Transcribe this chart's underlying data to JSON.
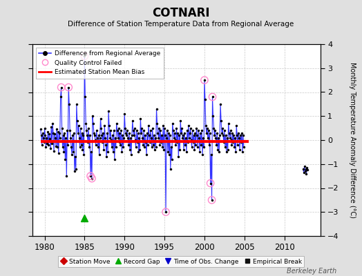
{
  "title": "COTNARI",
  "subtitle": "Difference of Station Temperature Data from Regional Average",
  "ylabel": "Monthly Temperature Anomaly Difference (°C)",
  "xlabel_ticks": [
    1980,
    1985,
    1990,
    1995,
    2000,
    2005,
    2010
  ],
  "ylim": [
    -4,
    4
  ],
  "xlim": [
    1978.5,
    2014.5
  ],
  "bias_line_y": -0.05,
  "bias_line_x_start": 1979.5,
  "bias_line_x_end": 2005.5,
  "record_gap_x": 1985.0,
  "record_gap_y": -3.25,
  "background_color": "#e0e0e0",
  "plot_bg_color": "#ffffff",
  "grid_color": "#c8c8c8",
  "bias_color": "#ff0000",
  "line_color": "#3333ff",
  "dot_color": "#000000",
  "qc_color": "#ff88cc",
  "watermark": "Berkeley Earth",
  "segment1": [
    [
      1979.5,
      0.45
    ],
    [
      1979.583,
      0.2
    ],
    [
      1979.667,
      -0.2
    ],
    [
      1979.75,
      0.3
    ],
    [
      1979.833,
      0.1
    ],
    [
      1979.917,
      -0.1
    ],
    [
      1980.0,
      0.5
    ],
    [
      1980.083,
      0.2
    ],
    [
      1980.167,
      -0.3
    ],
    [
      1980.25,
      0.1
    ],
    [
      1980.333,
      -0.15
    ],
    [
      1980.417,
      0.35
    ],
    [
      1980.5,
      -0.2
    ],
    [
      1980.583,
      0.25
    ],
    [
      1980.667,
      0.05
    ],
    [
      1980.75,
      -0.35
    ],
    [
      1980.833,
      0.55
    ],
    [
      1980.917,
      -0.15
    ],
    [
      1981.0,
      0.7
    ],
    [
      1981.083,
      0.3
    ],
    [
      1981.167,
      -0.45
    ],
    [
      1981.25,
      0.25
    ],
    [
      1981.333,
      0.1
    ],
    [
      1981.417,
      -0.25
    ],
    [
      1981.5,
      0.45
    ],
    [
      1981.583,
      -0.3
    ],
    [
      1981.667,
      0.35
    ],
    [
      1981.75,
      -0.55
    ],
    [
      1981.833,
      0.3
    ],
    [
      1981.917,
      0.1
    ],
    [
      1982.0,
      1.8
    ],
    [
      1982.083,
      2.2
    ],
    [
      1982.167,
      0.5
    ],
    [
      1982.25,
      -0.3
    ],
    [
      1982.333,
      0.2
    ],
    [
      1982.417,
      -0.5
    ],
    [
      1982.5,
      0.3
    ],
    [
      1982.583,
      -0.8
    ],
    [
      1982.667,
      0.1
    ],
    [
      1982.75,
      -1.5
    ],
    [
      1982.833,
      0.4
    ],
    [
      1982.917,
      -0.2
    ],
    [
      1983.0,
      2.2
    ],
    [
      1983.083,
      1.5
    ],
    [
      1983.167,
      0.4
    ],
    [
      1983.25,
      0.1
    ],
    [
      1983.333,
      -0.3
    ],
    [
      1983.417,
      -0.6
    ],
    [
      1983.5,
      0.2
    ],
    [
      1983.583,
      -0.5
    ],
    [
      1983.667,
      0.3
    ],
    [
      1983.75,
      -1.3
    ],
    [
      1983.833,
      -0.7
    ],
    [
      1983.917,
      -1.2
    ],
    [
      1984.0,
      1.5
    ],
    [
      1984.083,
      0.8
    ],
    [
      1984.167,
      0.3
    ],
    [
      1984.25,
      0.6
    ],
    [
      1984.333,
      0.1
    ],
    [
      1984.417,
      -0.3
    ],
    [
      1984.5,
      0.5
    ],
    [
      1984.583,
      -0.2
    ],
    [
      1984.667,
      0.3
    ],
    [
      1984.75,
      -0.4
    ],
    [
      1984.833,
      0.2
    ],
    [
      1984.917,
      -0.6
    ],
    [
      1985.0,
      3.5
    ],
    [
      1985.083,
      1.8
    ],
    [
      1985.167,
      0.7
    ],
    [
      1985.25,
      0.4
    ],
    [
      1985.333,
      0.2
    ],
    [
      1985.417,
      -0.1
    ],
    [
      1985.5,
      0.5
    ],
    [
      1985.583,
      -0.3
    ],
    [
      1985.667,
      0.2
    ],
    [
      1985.75,
      -1.5
    ],
    [
      1985.833,
      -0.5
    ],
    [
      1985.917,
      -1.6
    ],
    [
      1986.0,
      1.0
    ],
    [
      1986.083,
      0.7
    ],
    [
      1986.167,
      0.3
    ],
    [
      1986.25,
      0.2
    ],
    [
      1986.333,
      0.0
    ],
    [
      1986.417,
      -0.2
    ],
    [
      1986.5,
      0.4
    ],
    [
      1986.583,
      0.1
    ],
    [
      1986.667,
      -0.3
    ],
    [
      1986.75,
      0.2
    ],
    [
      1986.833,
      -0.6
    ],
    [
      1986.917,
      0.1
    ],
    [
      1987.0,
      0.9
    ],
    [
      1987.083,
      0.5
    ],
    [
      1987.167,
      0.2
    ],
    [
      1987.25,
      -0.1
    ],
    [
      1987.333,
      0.3
    ],
    [
      1987.417,
      -0.4
    ],
    [
      1987.5,
      0.6
    ],
    [
      1987.583,
      0.1
    ],
    [
      1987.667,
      -0.2
    ],
    [
      1987.75,
      -0.7
    ],
    [
      1987.833,
      0.3
    ],
    [
      1987.917,
      -0.5
    ],
    [
      1988.0,
      1.2
    ],
    [
      1988.083,
      0.6
    ],
    [
      1988.167,
      0.1
    ],
    [
      1988.25,
      0.4
    ],
    [
      1988.333,
      0.0
    ],
    [
      1988.417,
      -0.3
    ],
    [
      1988.5,
      0.2
    ],
    [
      1988.583,
      -0.5
    ],
    [
      1988.667,
      0.4
    ],
    [
      1988.75,
      -0.8
    ],
    [
      1988.833,
      0.1
    ],
    [
      1988.917,
      -0.3
    ],
    [
      1989.0,
      0.7
    ],
    [
      1989.083,
      0.4
    ],
    [
      1989.167,
      0.1
    ],
    [
      1989.25,
      0.5
    ],
    [
      1989.333,
      -0.1
    ],
    [
      1989.417,
      0.3
    ],
    [
      1989.5,
      -0.2
    ],
    [
      1989.583,
      0.4
    ],
    [
      1989.667,
      -0.5
    ],
    [
      1989.75,
      0.2
    ],
    [
      1989.833,
      -0.3
    ],
    [
      1989.917,
      0.1
    ],
    [
      1990.0,
      1.1
    ],
    [
      1990.083,
      0.5
    ],
    [
      1990.167,
      0.3
    ],
    [
      1990.25,
      0.2
    ],
    [
      1990.333,
      0.4
    ],
    [
      1990.417,
      0.1
    ],
    [
      1990.5,
      -0.2
    ],
    [
      1990.583,
      0.3
    ],
    [
      1990.667,
      -0.4
    ],
    [
      1990.75,
      0.1
    ],
    [
      1990.833,
      -0.6
    ],
    [
      1990.917,
      0.2
    ],
    [
      1991.0,
      0.8
    ],
    [
      1991.083,
      0.4
    ],
    [
      1991.167,
      0.2
    ],
    [
      1991.25,
      0.5
    ],
    [
      1991.333,
      0.0
    ],
    [
      1991.417,
      -0.3
    ],
    [
      1991.5,
      0.4
    ],
    [
      1991.583,
      -0.1
    ],
    [
      1991.667,
      0.3
    ],
    [
      1991.75,
      -0.5
    ],
    [
      1991.833,
      0.1
    ],
    [
      1991.917,
      -0.4
    ],
    [
      1992.0,
      0.9
    ],
    [
      1992.083,
      0.3
    ],
    [
      1992.167,
      0.5
    ],
    [
      1992.25,
      0.1
    ],
    [
      1992.333,
      -0.2
    ],
    [
      1992.417,
      0.4
    ],
    [
      1992.5,
      -0.3
    ],
    [
      1992.583,
      0.2
    ],
    [
      1992.667,
      -0.1
    ],
    [
      1992.75,
      -0.6
    ],
    [
      1992.833,
      0.3
    ],
    [
      1992.917,
      -0.2
    ],
    [
      1993.0,
      0.6
    ],
    [
      1993.083,
      0.2
    ],
    [
      1993.167,
      -0.1
    ],
    [
      1993.25,
      0.4
    ],
    [
      1993.333,
      0.1
    ],
    [
      1993.417,
      -0.3
    ],
    [
      1993.5,
      0.5
    ],
    [
      1993.583,
      -0.2
    ],
    [
      1993.667,
      0.2
    ],
    [
      1993.75,
      -0.4
    ],
    [
      1993.833,
      0.1
    ],
    [
      1993.917,
      -0.3
    ],
    [
      1994.0,
      1.3
    ],
    [
      1994.083,
      0.7
    ],
    [
      1994.167,
      0.3
    ],
    [
      1994.25,
      0.1
    ],
    [
      1994.333,
      0.5
    ],
    [
      1994.417,
      -0.2
    ],
    [
      1994.5,
      0.4
    ],
    [
      1994.583,
      -0.1
    ],
    [
      1994.667,
      0.2
    ],
    [
      1994.75,
      -0.3
    ],
    [
      1994.833,
      0.6
    ],
    [
      1994.917,
      -0.4
    ],
    [
      1995.0,
      0.5
    ],
    [
      1995.083,
      0.2
    ],
    [
      1995.167,
      -3.0
    ],
    [
      1995.25,
      0.1
    ],
    [
      1995.333,
      0.4
    ],
    [
      1995.417,
      -0.5
    ],
    [
      1995.5,
      0.3
    ],
    [
      1995.583,
      -0.6
    ],
    [
      1995.667,
      0.2
    ],
    [
      1995.75,
      -1.2
    ],
    [
      1995.833,
      -0.3
    ],
    [
      1995.917,
      -0.8
    ],
    [
      1996.0,
      0.7
    ],
    [
      1996.083,
      0.4
    ],
    [
      1996.167,
      0.1
    ],
    [
      1996.25,
      0.3
    ],
    [
      1996.333,
      0.0
    ],
    [
      1996.417,
      -0.2
    ],
    [
      1996.5,
      0.5
    ],
    [
      1996.583,
      -0.1
    ],
    [
      1996.667,
      0.3
    ],
    [
      1996.75,
      -0.7
    ],
    [
      1996.833,
      0.2
    ],
    [
      1996.917,
      -0.4
    ],
    [
      1997.0,
      0.8
    ],
    [
      1997.083,
      0.3
    ],
    [
      1997.167,
      0.5
    ],
    [
      1997.25,
      0.1
    ],
    [
      1997.333,
      0.2
    ],
    [
      1997.417,
      -0.4
    ],
    [
      1997.5,
      0.3
    ],
    [
      1997.583,
      -0.2
    ],
    [
      1997.667,
      0.1
    ],
    [
      1997.75,
      -0.5
    ],
    [
      1997.833,
      0.4
    ],
    [
      1997.917,
      -0.1
    ],
    [
      1998.0,
      0.6
    ],
    [
      1998.083,
      0.1
    ],
    [
      1998.167,
      0.3
    ],
    [
      1998.25,
      0.5
    ],
    [
      1998.333,
      0.0
    ],
    [
      1998.417,
      -0.3
    ],
    [
      1998.5,
      0.4
    ],
    [
      1998.583,
      -0.1
    ],
    [
      1998.667,
      0.2
    ],
    [
      1998.75,
      -0.4
    ],
    [
      1998.833,
      0.3
    ],
    [
      1998.917,
      -0.2
    ],
    [
      1999.0,
      0.5
    ],
    [
      1999.083,
      0.2
    ],
    [
      1999.167,
      -0.3
    ],
    [
      1999.25,
      0.4
    ],
    [
      1999.333,
      0.1
    ],
    [
      1999.417,
      -0.5
    ],
    [
      1999.5,
      0.3
    ],
    [
      1999.583,
      -0.2
    ],
    [
      1999.667,
      0.4
    ],
    [
      1999.75,
      -0.6
    ],
    [
      1999.833,
      0.1
    ],
    [
      1999.917,
      -0.3
    ],
    [
      2000.0,
      2.5
    ],
    [
      2000.083,
      1.7
    ],
    [
      2000.167,
      0.6
    ],
    [
      2000.25,
      0.3
    ],
    [
      2000.333,
      0.5
    ],
    [
      2000.417,
      0.1
    ],
    [
      2000.5,
      0.4
    ],
    [
      2000.583,
      -0.2
    ],
    [
      2000.667,
      0.3
    ],
    [
      2000.75,
      -1.8
    ],
    [
      2000.833,
      -0.6
    ],
    [
      2000.917,
      -2.5
    ],
    [
      2001.0,
      1.8
    ],
    [
      2001.083,
      1.0
    ],
    [
      2001.167,
      0.5
    ],
    [
      2001.25,
      0.2
    ],
    [
      2001.333,
      0.4
    ],
    [
      2001.417,
      0.1
    ],
    [
      2001.5,
      -0.2
    ],
    [
      2001.583,
      0.3
    ],
    [
      2001.667,
      -0.4
    ],
    [
      2001.75,
      0.1
    ],
    [
      2001.833,
      -0.5
    ],
    [
      2001.917,
      0.2
    ],
    [
      2002.0,
      1.5
    ],
    [
      2002.083,
      0.8
    ],
    [
      2002.167,
      0.3
    ],
    [
      2002.25,
      0.5
    ],
    [
      2002.333,
      0.2
    ],
    [
      2002.417,
      -0.1
    ],
    [
      2002.5,
      0.4
    ],
    [
      2002.583,
      -0.3
    ],
    [
      2002.667,
      0.2
    ],
    [
      2002.75,
      -0.5
    ],
    [
      2002.833,
      0.1
    ],
    [
      2002.917,
      -0.4
    ],
    [
      2003.0,
      0.7
    ],
    [
      2003.083,
      0.3
    ],
    [
      2003.167,
      0.1
    ],
    [
      2003.25,
      0.4
    ],
    [
      2003.333,
      0.0
    ],
    [
      2003.417,
      -0.2
    ],
    [
      2003.5,
      0.3
    ],
    [
      2003.583,
      -0.1
    ],
    [
      2003.667,
      0.2
    ],
    [
      2003.75,
      -0.3
    ],
    [
      2003.833,
      0.1
    ],
    [
      2003.917,
      -0.5
    ],
    [
      2004.0,
      0.6
    ],
    [
      2004.083,
      0.2
    ],
    [
      2004.167,
      -0.2
    ],
    [
      2004.25,
      0.3
    ],
    [
      2004.333,
      0.1
    ],
    [
      2004.417,
      -0.4
    ],
    [
      2004.5,
      0.2
    ],
    [
      2004.583,
      -0.1
    ],
    [
      2004.667,
      0.3
    ],
    [
      2004.75,
      -0.5
    ],
    [
      2004.833,
      0.2
    ],
    [
      2004.917,
      -0.3
    ]
  ],
  "segment2": [
    [
      2012.333,
      -1.2
    ],
    [
      2012.417,
      -1.35
    ],
    [
      2012.5,
      -1.1
    ],
    [
      2012.583,
      -1.3
    ],
    [
      2012.667,
      -1.2
    ],
    [
      2012.75,
      -1.4
    ],
    [
      2012.833,
      -1.15
    ],
    [
      2012.917,
      -1.25
    ]
  ],
  "qc_failed_points": [
    [
      1982.083,
      2.2
    ],
    [
      1983.0,
      2.2
    ],
    [
      1985.0,
      3.5
    ],
    [
      1985.75,
      -1.5
    ],
    [
      1985.917,
      -1.6
    ],
    [
      1995.167,
      -3.0
    ],
    [
      2000.0,
      2.5
    ],
    [
      2000.917,
      -2.5
    ],
    [
      2001.0,
      1.8
    ],
    [
      2000.75,
      -1.8
    ]
  ]
}
